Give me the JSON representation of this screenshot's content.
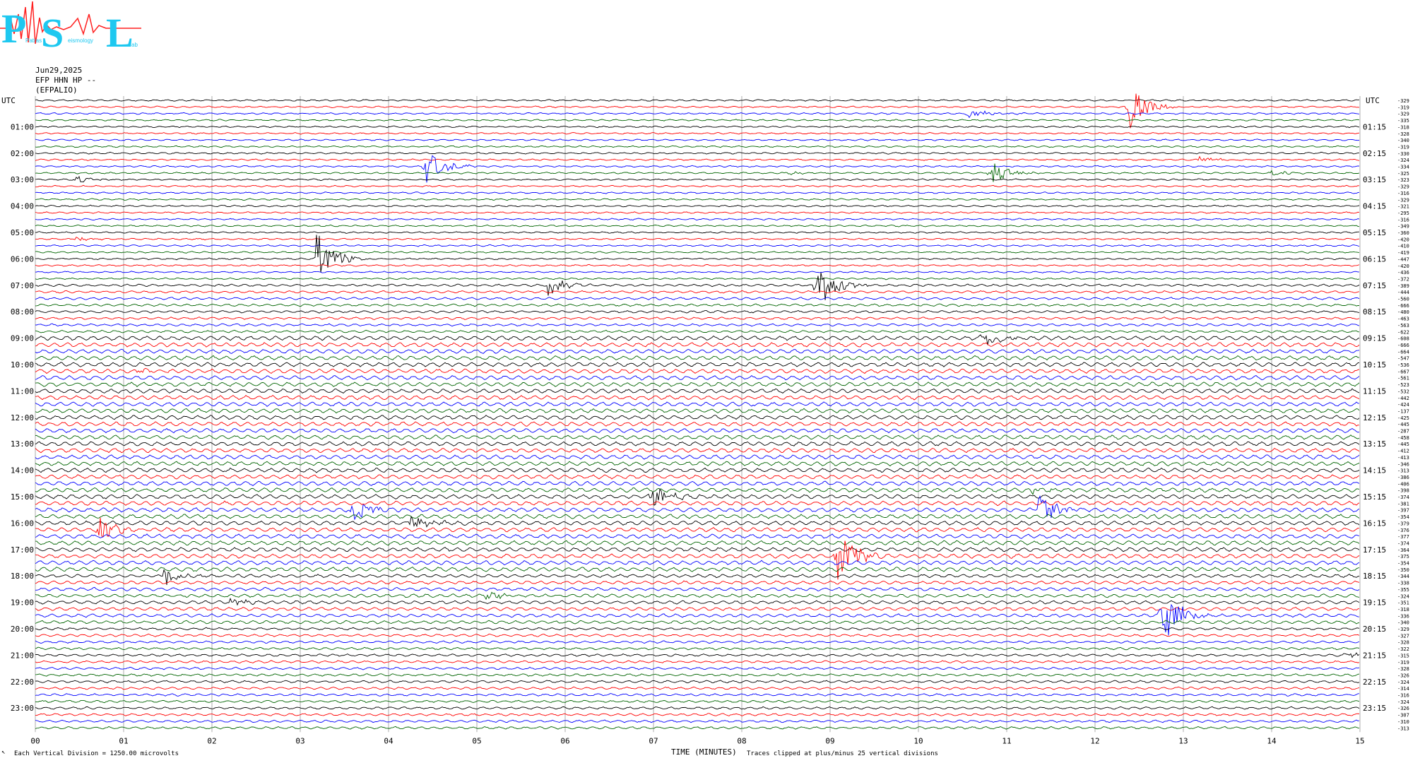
{
  "logo": {
    "letters": [
      "P",
      "S",
      "L"
    ],
    "small_words": [
      "Patras",
      "eismology",
      "ab"
    ],
    "color_main": "#1ec8f0",
    "color_trace": "#ff2020"
  },
  "header": {
    "date": "Jun29,2025",
    "channel": "EFP HHN HP --",
    "station": "(EFPALIO)"
  },
  "footer": {
    "left_note": "Each Vertical Division = 1250.00 microvolts",
    "corner_mark": "↖",
    "xlabel": "TIME (MINUTES)",
    "clip_note": "Traces clipped at plus/minus 25 vertical divisions"
  },
  "chart_data": {
    "type": "line",
    "xlim": [
      0,
      15
    ],
    "xticks": [
      "00",
      "01",
      "02",
      "03",
      "04",
      "05",
      "06",
      "07",
      "08",
      "09",
      "10",
      "11",
      "12",
      "13",
      "14",
      "15"
    ],
    "left_axis_title": "UTC",
    "right_axis_title": "UTC",
    "left_hour_labels": [
      "01:00",
      "02:00",
      "03:00",
      "04:00",
      "05:00",
      "06:00",
      "07:00",
      "08:00",
      "09:00",
      "10:00",
      "11:00",
      "12:00",
      "13:00",
      "14:00",
      "15:00",
      "16:00",
      "17:00",
      "18:00",
      "19:00",
      "20:00",
      "21:00",
      "22:00",
      "23:00"
    ],
    "right_hour_labels": [
      "01:15",
      "02:15",
      "03:15",
      "04:15",
      "05:15",
      "06:15",
      "07:15",
      "08:15",
      "09:15",
      "10:15",
      "11:15",
      "12:15",
      "13:15",
      "14:15",
      "15:15",
      "16:15",
      "17:15",
      "18:15",
      "19:15",
      "20:15",
      "21:15",
      "22:15",
      "23:15"
    ],
    "trace_count": 96,
    "trace_colors": [
      "#000000",
      "#ff0000",
      "#0000ff",
      "#006400"
    ],
    "offsets": [
      -329,
      -319,
      -329,
      -335,
      -318,
      -328,
      -340,
      -319,
      -330,
      -324,
      -334,
      -325,
      -323,
      -329,
      -316,
      -329,
      -321,
      -295,
      -316,
      -349,
      -360,
      -420,
      -410,
      -419,
      -447,
      -420,
      -436,
      -372,
      -389,
      -444,
      -560,
      -666,
      -480,
      -463,
      -563,
      -622,
      -608,
      -666,
      -664,
      -547,
      -536,
      -667,
      -561,
      -523,
      -532,
      -442,
      -424,
      -137,
      -425,
      -445,
      -287,
      -458,
      -445,
      -412,
      -413,
      -346,
      -313,
      -386,
      -406,
      -398,
      -374,
      -381,
      -397,
      -354,
      -379,
      -376,
      -377,
      -374,
      -364,
      -375,
      -354,
      -350,
      -344,
      -338,
      -355,
      -324,
      -351,
      -318,
      -336,
      -340,
      -329,
      -327,
      -328,
      -322,
      -315,
      -319,
      -328,
      -326,
      -324,
      -314,
      -316,
      -324,
      -326,
      -307,
      -310,
      -313
    ],
    "events": [
      {
        "trace": 1,
        "minute": 12.38,
        "amp": 6.0
      },
      {
        "trace": 2,
        "minute": 10.57,
        "amp": 1.4
      },
      {
        "trace": 10,
        "minute": 4.42,
        "amp": 4.5
      },
      {
        "trace": 9,
        "minute": 13.18,
        "amp": 1.0
      },
      {
        "trace": 11,
        "minute": 10.82,
        "amp": 3.0
      },
      {
        "trace": 11,
        "minute": 8.5,
        "amp": 0.6
      },
      {
        "trace": 11,
        "minute": 14.0,
        "amp": 0.6
      },
      {
        "trace": 12,
        "minute": 0.45,
        "amp": 1.0
      },
      {
        "trace": 21,
        "minute": 0.45,
        "amp": 0.7
      },
      {
        "trace": 24,
        "minute": 3.18,
        "amp": 8.0
      },
      {
        "trace": 28,
        "minute": 5.8,
        "amp": 3.0
      },
      {
        "trace": 28,
        "minute": 8.85,
        "amp": 7.0
      },
      {
        "trace": 36,
        "minute": 10.72,
        "amp": 3.5
      },
      {
        "trace": 41,
        "minute": 1.15,
        "amp": 0.8
      },
      {
        "trace": 60,
        "minute": 6.98,
        "amp": 3.0
      },
      {
        "trace": 59,
        "minute": 11.28,
        "amp": 0.9
      },
      {
        "trace": 62,
        "minute": 3.6,
        "amp": 3.0
      },
      {
        "trace": 64,
        "minute": 4.25,
        "amp": 2.5
      },
      {
        "trace": 65,
        "minute": 0.72,
        "amp": 3.0
      },
      {
        "trace": 62,
        "minute": 11.35,
        "amp": 4.5
      },
      {
        "trace": 69,
        "minute": 9.08,
        "amp": 7.5
      },
      {
        "trace": 72,
        "minute": 1.45,
        "amp": 2.5
      },
      {
        "trace": 75,
        "minute": 5.1,
        "amp": 1.2
      },
      {
        "trace": 76,
        "minute": 2.2,
        "amp": 1.0
      },
      {
        "trace": 78,
        "minute": 12.75,
        "amp": 9.0
      },
      {
        "trace": 84,
        "minute": 14.85,
        "amp": 1.0
      }
    ]
  }
}
